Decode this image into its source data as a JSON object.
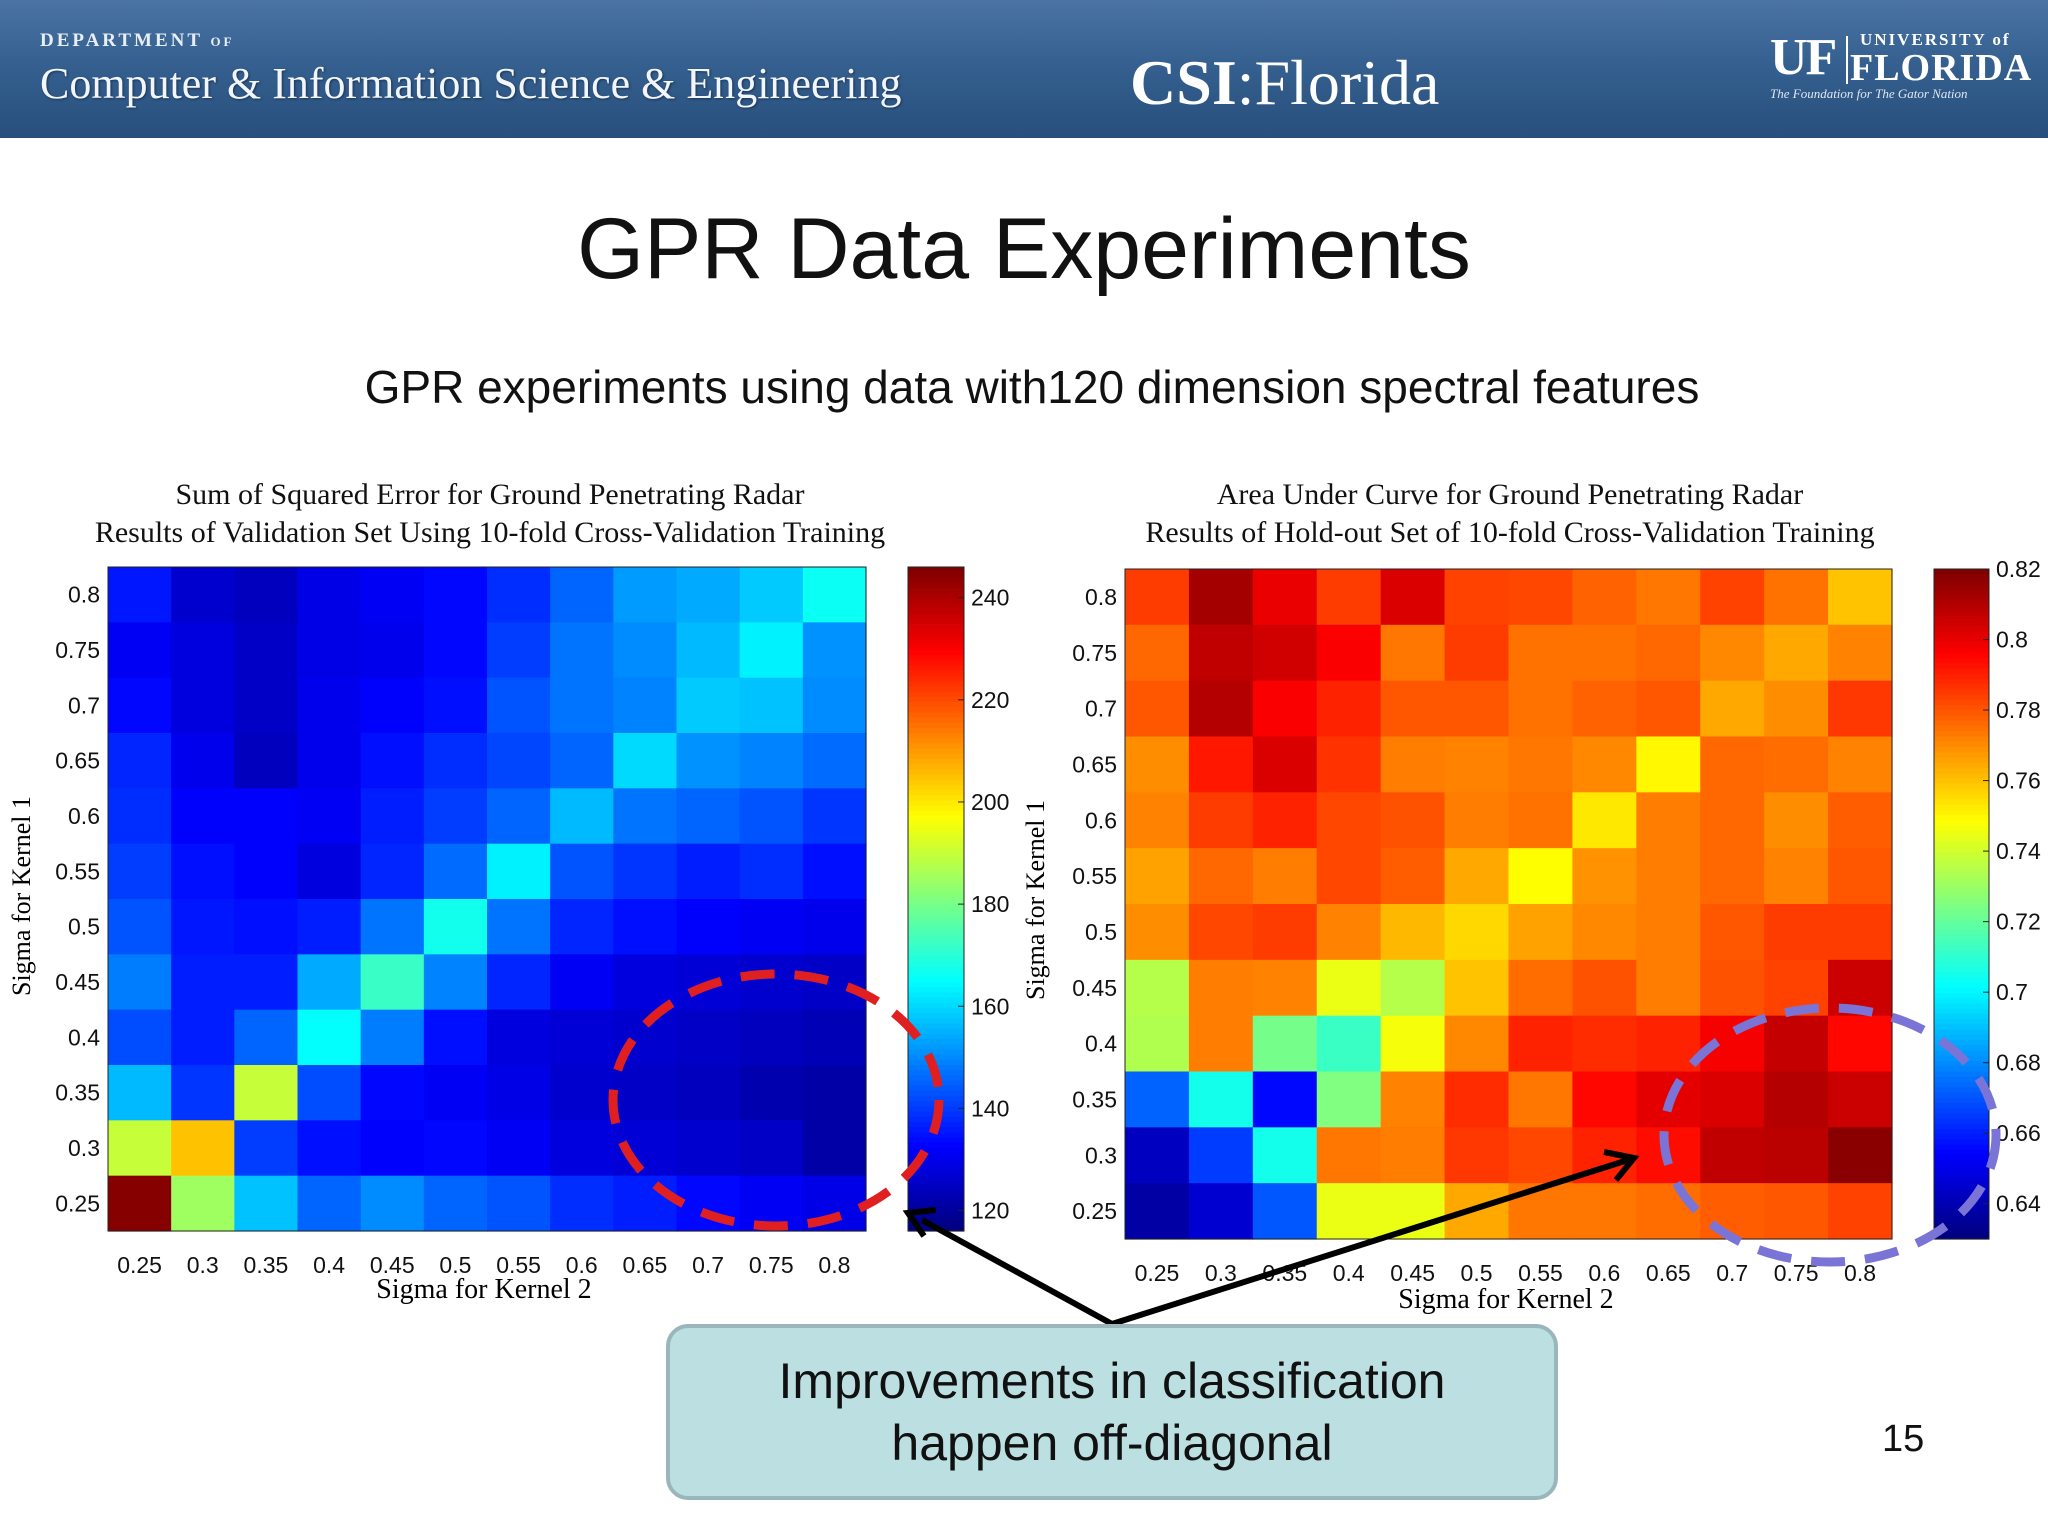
{
  "banner": {
    "department_small": "DEPARTMENT of",
    "department_name": "Computer & Information Science & Engineering",
    "csi_bold": "CSI",
    "csi_rest": ":Florida",
    "uf_mark": "UF",
    "university_of": "UNIVERSITY of",
    "florida": "FLORIDA",
    "tagline": "The Foundation for The Gator Nation"
  },
  "slide": {
    "title": "GPR Data Experiments",
    "subtitle": "GPR experiments using data with120 dimension spectral features",
    "callout_line1": "Improvements in classification",
    "callout_line2": "happen off-diagonal",
    "page_number": "15"
  },
  "colors": {
    "banner": "#35608f",
    "callout_bg": "#bcdfe2",
    "left_ellipse": "#e02020",
    "right_ellipse": "#7a74d6",
    "arrow": "#000000"
  },
  "chart_data": [
    {
      "type": "heatmap",
      "title_line1": "Sum of Squared Error for Ground Penetrating Radar",
      "title_line2": "Results of Validation Set Using 10-fold Cross-Validation Training",
      "xlabel": "Sigma for Kernel 2",
      "ylabel": "Sigma for Kernel 1",
      "x_ticks": [
        "0.25",
        "0.3",
        "0.35",
        "0.4",
        "0.45",
        "0.5",
        "0.55",
        "0.6",
        "0.65",
        "0.7",
        "0.75",
        "0.8"
      ],
      "y_ticks": [
        "0.25",
        "0.3",
        "0.35",
        "0.4",
        "0.45",
        "0.5",
        "0.55",
        "0.6",
        "0.65",
        "0.7",
        "0.75",
        "0.8"
      ],
      "colorbar_ticks": [
        "120",
        "140",
        "160",
        "180",
        "200",
        "220",
        "240"
      ],
      "clim": [
        116,
        246
      ],
      "colormap": "jet",
      "rows_top_to_bottom": [
        [
          135,
          126,
          124,
          129,
          131,
          133,
          138,
          145,
          152,
          154,
          158,
          166
        ],
        [
          131,
          128,
          125,
          129,
          130,
          133,
          140,
          147,
          150,
          156,
          163,
          151
        ],
        [
          133,
          128,
          125,
          130,
          132,
          134,
          143,
          147,
          149,
          158,
          157,
          150
        ],
        [
          137,
          130,
          124,
          130,
          134,
          138,
          141,
          145,
          160,
          151,
          149,
          146
        ],
        [
          138,
          132,
          132,
          131,
          136,
          140,
          145,
          156,
          147,
          145,
          143,
          139
        ],
        [
          140,
          134,
          132,
          128,
          137,
          146,
          163,
          143,
          139,
          136,
          138,
          134
        ],
        [
          143,
          135,
          134,
          136,
          147,
          167,
          147,
          137,
          134,
          132,
          131,
          130
        ],
        [
          148,
          136,
          136,
          154,
          172,
          149,
          137,
          131,
          128,
          127,
          126,
          125
        ],
        [
          142,
          136,
          145,
          165,
          148,
          134,
          128,
          127,
          126,
          125,
          124,
          123
        ],
        [
          156,
          139,
          190,
          142,
          133,
          131,
          129,
          126,
          125,
          124,
          122,
          121
        ],
        [
          190,
          205,
          140,
          134,
          132,
          133,
          131,
          128,
          127,
          126,
          125,
          121
        ],
        [
          245,
          185,
          157,
          145,
          150,
          145,
          143,
          138,
          136,
          133,
          131,
          129
        ]
      ]
    },
    {
      "type": "heatmap",
      "title_line1": "Area Under Curve for Ground Penetrating Radar",
      "title_line2": "Results of Hold-out Set of 10-fold Cross-Validation Training",
      "xlabel": "Sigma for Kernel 2",
      "ylabel": "Sigma for Kernel 1",
      "x_ticks": [
        "0.25",
        "0.3",
        "0.35",
        "0.4",
        "0.45",
        "0.5",
        "0.55",
        "0.6",
        "0.65",
        "0.7",
        "0.75",
        "0.8"
      ],
      "y_ticks": [
        "0.25",
        "0.3",
        "0.35",
        "0.4",
        "0.45",
        "0.5",
        "0.55",
        "0.6",
        "0.65",
        "0.7",
        "0.75",
        "0.8"
      ],
      "colorbar_ticks": [
        "0.64",
        "0.66",
        "0.68",
        "0.7",
        "0.72",
        "0.74",
        "0.76",
        "0.78",
        "0.8",
        "0.82"
      ],
      "clim": [
        0.63,
        0.82
      ],
      "colormap": "jet",
      "rows_top_to_bottom": [
        [
          0.785,
          0.813,
          0.8,
          0.785,
          0.803,
          0.784,
          0.783,
          0.778,
          0.774,
          0.784,
          0.775,
          0.76
        ],
        [
          0.777,
          0.808,
          0.805,
          0.797,
          0.774,
          0.785,
          0.775,
          0.775,
          0.777,
          0.771,
          0.765,
          0.772
        ],
        [
          0.78,
          0.81,
          0.797,
          0.79,
          0.78,
          0.78,
          0.775,
          0.778,
          0.78,
          0.765,
          0.77,
          0.786
        ],
        [
          0.77,
          0.792,
          0.803,
          0.787,
          0.773,
          0.772,
          0.774,
          0.771,
          0.75,
          0.777,
          0.776,
          0.772
        ],
        [
          0.772,
          0.785,
          0.79,
          0.783,
          0.781,
          0.773,
          0.775,
          0.753,
          0.773,
          0.777,
          0.77,
          0.779
        ],
        [
          0.766,
          0.777,
          0.773,
          0.783,
          0.779,
          0.765,
          0.749,
          0.769,
          0.773,
          0.777,
          0.772,
          0.78
        ],
        [
          0.77,
          0.783,
          0.785,
          0.772,
          0.762,
          0.756,
          0.766,
          0.771,
          0.773,
          0.78,
          0.785,
          0.785
        ],
        [
          0.735,
          0.773,
          0.772,
          0.745,
          0.735,
          0.76,
          0.776,
          0.781,
          0.773,
          0.781,
          0.784,
          0.806
        ],
        [
          0.734,
          0.773,
          0.723,
          0.712,
          0.747,
          0.771,
          0.79,
          0.788,
          0.79,
          0.798,
          0.807,
          0.795
        ],
        [
          0.672,
          0.705,
          0.655,
          0.725,
          0.772,
          0.788,
          0.774,
          0.795,
          0.801,
          0.803,
          0.81,
          0.806
        ],
        [
          0.642,
          0.665,
          0.705,
          0.774,
          0.773,
          0.786,
          0.783,
          0.79,
          0.794,
          0.808,
          0.809,
          0.818
        ],
        [
          0.637,
          0.645,
          0.67,
          0.745,
          0.745,
          0.765,
          0.774,
          0.774,
          0.776,
          0.779,
          0.78,
          0.784
        ]
      ]
    }
  ]
}
